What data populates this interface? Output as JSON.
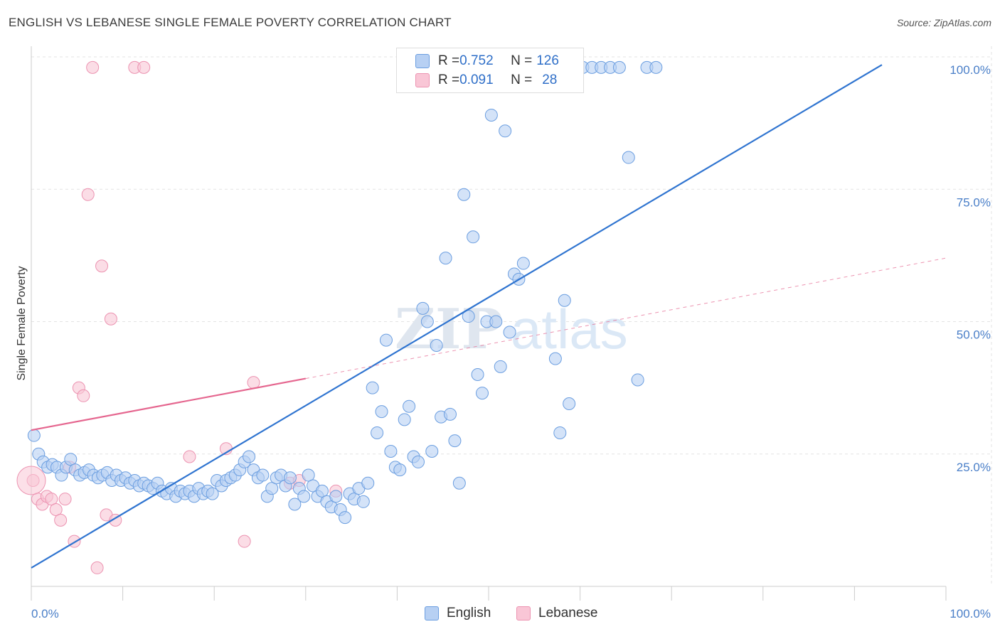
{
  "title": "ENGLISH VS LEBANESE SINGLE FEMALE POVERTY CORRELATION CHART",
  "source": "Source: ZipAtlas.com",
  "watermark": {
    "bold": "ZIP",
    "light": "atlas"
  },
  "legend": {
    "rows": [
      {
        "r_label": "R = ",
        "r_value": "0.752",
        "n_label": "N = ",
        "n_value": "126"
      },
      {
        "r_label": "R = ",
        "r_value": "0.091",
        "n_label": "N = ",
        "n_value": "28"
      }
    ]
  },
  "colors": {
    "english_fill": "#b7d0f3",
    "english_stroke": "#6b9ee0",
    "english_line": "#2f74d0",
    "lebanese_fill": "#f9c6d6",
    "lebanese_stroke": "#ec93b1",
    "lebanese_line": "#e5668f",
    "grid": "#e3e3e3",
    "tick_text": "#4a7fc8"
  },
  "chart_data": {
    "type": "scatter",
    "title": "ENGLISH VS LEBANESE SINGLE FEMALE POVERTY CORRELATION CHART",
    "xlabel": "",
    "ylabel": "Single Female Poverty",
    "xlim": [
      0,
      100
    ],
    "ylim": [
      0,
      100
    ],
    "x_tick_labels": [
      "0.0%",
      "100.0%"
    ],
    "y_tick_labels": [
      "25.0%",
      "50.0%",
      "75.0%",
      "100.0%"
    ],
    "grid": true,
    "legend_position": "top-center",
    "series": [
      {
        "name": "English",
        "r": 0.752,
        "n": 126,
        "trend": [
          [
            0,
            3.5
          ],
          [
            93,
            98.5
          ]
        ],
        "points": [
          [
            0.3,
            28.5
          ],
          [
            0.8,
            25
          ],
          [
            1.3,
            23.5
          ],
          [
            1.8,
            22.5
          ],
          [
            2.3,
            23
          ],
          [
            2.8,
            22.5
          ],
          [
            3.3,
            21
          ],
          [
            3.8,
            22.5
          ],
          [
            4.3,
            24
          ],
          [
            4.8,
            22
          ],
          [
            5.3,
            21
          ],
          [
            5.8,
            21.5
          ],
          [
            6.3,
            22
          ],
          [
            6.8,
            21
          ],
          [
            7.3,
            20.5
          ],
          [
            7.8,
            21
          ],
          [
            8.3,
            21.5
          ],
          [
            8.8,
            20
          ],
          [
            9.3,
            21
          ],
          [
            9.8,
            20
          ],
          [
            10.3,
            20.5
          ],
          [
            10.8,
            19.5
          ],
          [
            11.3,
            20
          ],
          [
            11.8,
            19
          ],
          [
            12.3,
            19.5
          ],
          [
            12.8,
            19
          ],
          [
            13.3,
            18.5
          ],
          [
            13.8,
            19.5
          ],
          [
            14.3,
            18
          ],
          [
            14.8,
            17.5
          ],
          [
            15.3,
            18.5
          ],
          [
            15.8,
            17
          ],
          [
            16.3,
            18
          ],
          [
            16.8,
            17.5
          ],
          [
            17.3,
            18
          ],
          [
            17.8,
            17
          ],
          [
            18.3,
            18.5
          ],
          [
            18.8,
            17.5
          ],
          [
            19.3,
            18
          ],
          [
            19.8,
            17.5
          ],
          [
            20.3,
            20
          ],
          [
            20.8,
            19
          ],
          [
            21.3,
            20
          ],
          [
            21.8,
            20.5
          ],
          [
            22.3,
            21
          ],
          [
            22.8,
            22
          ],
          [
            23.3,
            23.5
          ],
          [
            23.8,
            24.5
          ],
          [
            24.3,
            22
          ],
          [
            24.8,
            20.5
          ],
          [
            25.3,
            21
          ],
          [
            25.8,
            17
          ],
          [
            26.3,
            18.5
          ],
          [
            26.8,
            20.5
          ],
          [
            27.3,
            21
          ],
          [
            27.8,
            19
          ],
          [
            28.3,
            20.5
          ],
          [
            28.8,
            15.5
          ],
          [
            29.3,
            18.5
          ],
          [
            29.8,
            17
          ],
          [
            30.3,
            21
          ],
          [
            30.8,
            19
          ],
          [
            31.3,
            17
          ],
          [
            31.8,
            18
          ],
          [
            32.3,
            16
          ],
          [
            32.8,
            15
          ],
          [
            33.3,
            17
          ],
          [
            33.8,
            14.5
          ],
          [
            34.3,
            13
          ],
          [
            34.8,
            17.5
          ],
          [
            35.3,
            16.5
          ],
          [
            35.8,
            18.5
          ],
          [
            36.3,
            16
          ],
          [
            36.8,
            19.5
          ],
          [
            37.3,
            37.5
          ],
          [
            37.8,
            29
          ],
          [
            38.3,
            33
          ],
          [
            38.8,
            46.5
          ],
          [
            39.3,
            25.5
          ],
          [
            39.8,
            22.5
          ],
          [
            40.3,
            22
          ],
          [
            40.8,
            31.5
          ],
          [
            41.3,
            34
          ],
          [
            41.8,
            24.5
          ],
          [
            42.3,
            23.5
          ],
          [
            42.8,
            52.5
          ],
          [
            43.3,
            50
          ],
          [
            43.8,
            25.5
          ],
          [
            44.3,
            45.5
          ],
          [
            44.8,
            32
          ],
          [
            45.3,
            62
          ],
          [
            45.8,
            32.5
          ],
          [
            46.3,
            27.5
          ],
          [
            46.8,
            19.5
          ],
          [
            47.3,
            74
          ],
          [
            47.8,
            51
          ],
          [
            48.3,
            66
          ],
          [
            48.8,
            40
          ],
          [
            49.3,
            36.5
          ],
          [
            49.8,
            50
          ],
          [
            50.3,
            89
          ],
          [
            50.8,
            50
          ],
          [
            51.3,
            41.5
          ],
          [
            51.8,
            86
          ],
          [
            52.3,
            48
          ],
          [
            52.8,
            59
          ],
          [
            53.3,
            58
          ],
          [
            53.8,
            61
          ],
          [
            54.3,
            98
          ],
          [
            54.8,
            98
          ],
          [
            55.3,
            98
          ],
          [
            55.8,
            98
          ],
          [
            56.3,
            98
          ],
          [
            56.8,
            98
          ],
          [
            57.3,
            43
          ],
          [
            57.8,
            29
          ],
          [
            58.3,
            54
          ],
          [
            58.8,
            34.5
          ],
          [
            59.3,
            98
          ],
          [
            60.3,
            98
          ],
          [
            61.3,
            98
          ],
          [
            62.3,
            98
          ],
          [
            63.3,
            98
          ],
          [
            64.3,
            98
          ],
          [
            65.3,
            81
          ],
          [
            66.3,
            39
          ],
          [
            67.3,
            98
          ],
          [
            68.3,
            98
          ]
        ]
      },
      {
        "name": "Lebanese",
        "r": 0.091,
        "n": 28,
        "trend": [
          [
            0,
            29.5
          ],
          [
            100,
            62
          ]
        ],
        "points": [
          [
            0.2,
            20
          ],
          [
            0.7,
            16.5
          ],
          [
            1.2,
            15.5
          ],
          [
            1.7,
            17
          ],
          [
            2.2,
            16.5
          ],
          [
            2.7,
            14.5
          ],
          [
            3.2,
            12.5
          ],
          [
            3.7,
            16.5
          ],
          [
            4.2,
            22.5
          ],
          [
            4.7,
            8.5
          ],
          [
            5.2,
            37.5
          ],
          [
            5.7,
            36
          ],
          [
            6.2,
            74
          ],
          [
            6.7,
            98
          ],
          [
            7.2,
            3.5
          ],
          [
            7.7,
            60.5
          ],
          [
            8.2,
            13.5
          ],
          [
            8.7,
            50.5
          ],
          [
            9.2,
            12.5
          ],
          [
            11.3,
            98
          ],
          [
            12.3,
            98
          ],
          [
            17.3,
            24.5
          ],
          [
            21.3,
            26
          ],
          [
            23.3,
            8.5
          ],
          [
            24.3,
            38.5
          ],
          [
            28.3,
            19.5
          ],
          [
            33.3,
            18
          ],
          [
            29.3,
            20
          ]
        ]
      }
    ]
  }
}
